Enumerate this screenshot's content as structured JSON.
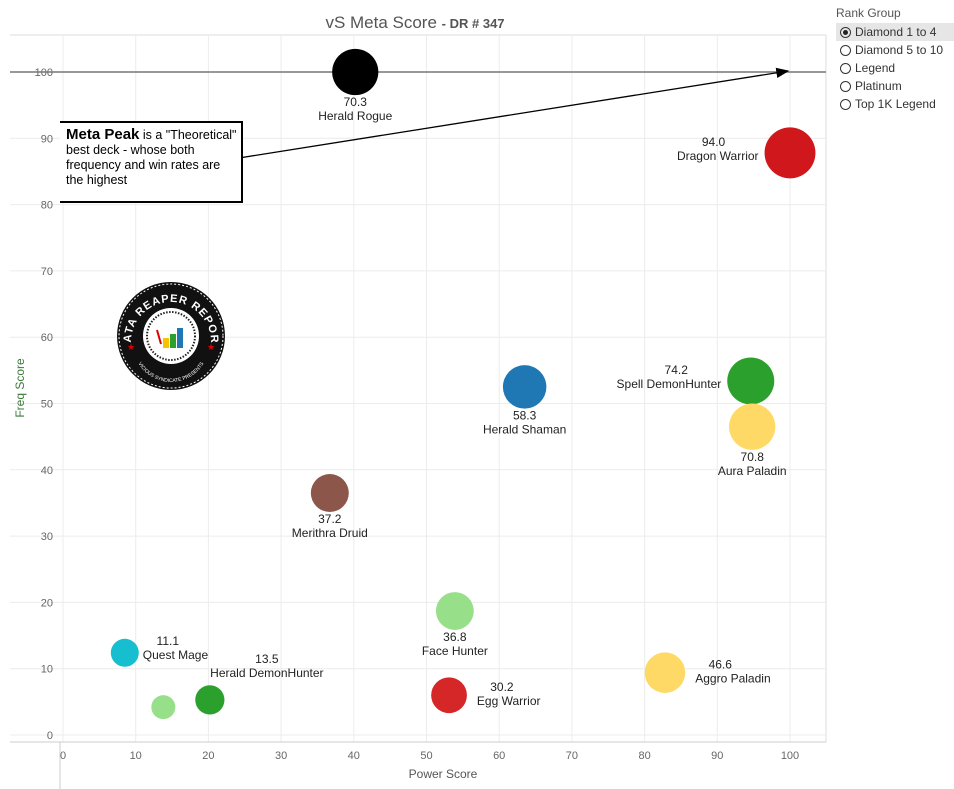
{
  "chart_data": {
    "type": "scatter",
    "title": "vS Meta Score",
    "title_suffix": "- DR # 347",
    "xlabel": "Power Score",
    "ylabel": "Freq Score",
    "xlim": [
      -7,
      105
    ],
    "ylim": [
      -1,
      105
    ],
    "xticks": [
      0,
      10,
      20,
      30,
      40,
      50,
      60,
      70,
      80,
      90,
      100
    ],
    "yticks": [
      0,
      10,
      20,
      30,
      40,
      50,
      60,
      70,
      80,
      90,
      100
    ],
    "grid": true,
    "reference_line_y": 100,
    "points": [
      {
        "name": "Herald Rogue",
        "score": "70.3",
        "x": 40.2,
        "y": 100,
        "color": "#000000",
        "label_pos": "below"
      },
      {
        "name": "Dragon Warrior",
        "score": "94.0",
        "x": 100,
        "y": 87.8,
        "color": "#d0171b",
        "label_pos": "left"
      },
      {
        "name": "Herald Shaman",
        "score": "58.3",
        "x": 63.5,
        "y": 52.5,
        "color": "#1f77b4",
        "label_pos": "below"
      },
      {
        "name": "Spell DemonHunter",
        "score": "74.2",
        "x": 94.6,
        "y": 53.4,
        "color": "#2ca02c",
        "label_pos": "left"
      },
      {
        "name": "Aura Paladin",
        "score": "70.8",
        "x": 94.8,
        "y": 46.5,
        "color": "#ffd966",
        "label_pos": "below"
      },
      {
        "name": "Merithra Druid",
        "score": "37.2",
        "x": 36.7,
        "y": 36.5,
        "color": "#8c564b",
        "label_pos": "below"
      },
      {
        "name": "Face Hunter",
        "score": "36.8",
        "x": 53.9,
        "y": 18.7,
        "color": "#98df8a",
        "label_pos": "below"
      },
      {
        "name": "Quest Mage",
        "score": "11.1",
        "x": 8.5,
        "y": 12.4,
        "color": "#17becf",
        "label_pos": "right"
      },
      {
        "name": "Herald DemonHunter",
        "score": "13.5",
        "x": 20.2,
        "y": 5.3,
        "color": "#2ca02c",
        "label_pos": "above-right"
      },
      {
        "name": "",
        "score": "",
        "x": 13.8,
        "y": 4.2,
        "color": "#98df8a",
        "label_pos": "none"
      },
      {
        "name": "Egg Warrior",
        "score": "30.2",
        "x": 53.1,
        "y": 6.0,
        "color": "#d62728",
        "label_pos": "right"
      },
      {
        "name": "Aggro Paladin",
        "score": "46.6",
        "x": 82.8,
        "y": 9.4,
        "color": "#ffd966",
        "label_pos": "right"
      }
    ]
  },
  "annotation": {
    "bold": "Meta Peak",
    "text": " is a \"Theoretical\" best deck - whose both frequency and win rates are the highest"
  },
  "logo": {
    "text": "DATA REAPER REPORT",
    "subtext": "VICIOUS SYNDICATE PRESENTS"
  },
  "legend": {
    "title": "Rank Group",
    "options": [
      "Diamond 1 to 4",
      "Diamond 5 to 10",
      "Legend",
      "Platinum",
      "Top 1K Legend"
    ],
    "selected": "Diamond 1 to 4"
  }
}
